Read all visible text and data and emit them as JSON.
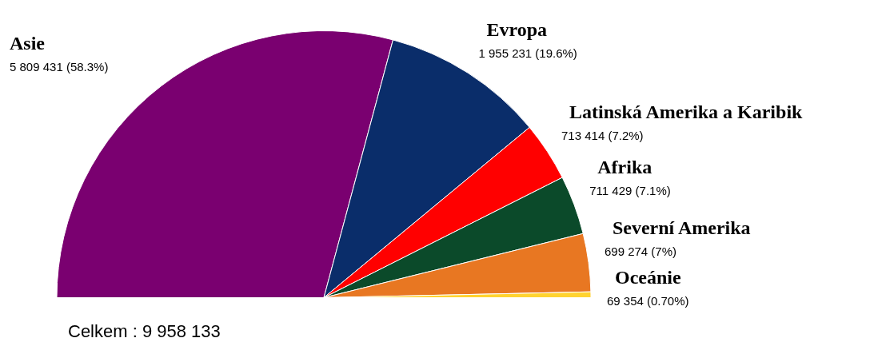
{
  "chart_data": {
    "type": "pie",
    "categories": [
      "Asie",
      "Evropa",
      "Latinská Amerika a Karibik",
      "Afrika",
      "Severní Amerika",
      "Oceánie"
    ],
    "values": [
      5809431,
      1955231,
      713414,
      711429,
      699274,
      69354
    ],
    "colors": [
      "#7a0070",
      "#0a2d6a",
      "#ff0000",
      "#0b4a2a",
      "#e87722",
      "#ffd330"
    ],
    "value_labels": [
      "5 809 431 (58.3%)",
      "1 955 231 (19.6%)",
      "713 414 (7.2%)",
      "711 429 (7.1%)",
      "699 274 (7%)",
      "69 354 (0.70%)"
    ],
    "legend": false,
    "annotations": [
      "Celkem : 9 958 133"
    ]
  }
}
